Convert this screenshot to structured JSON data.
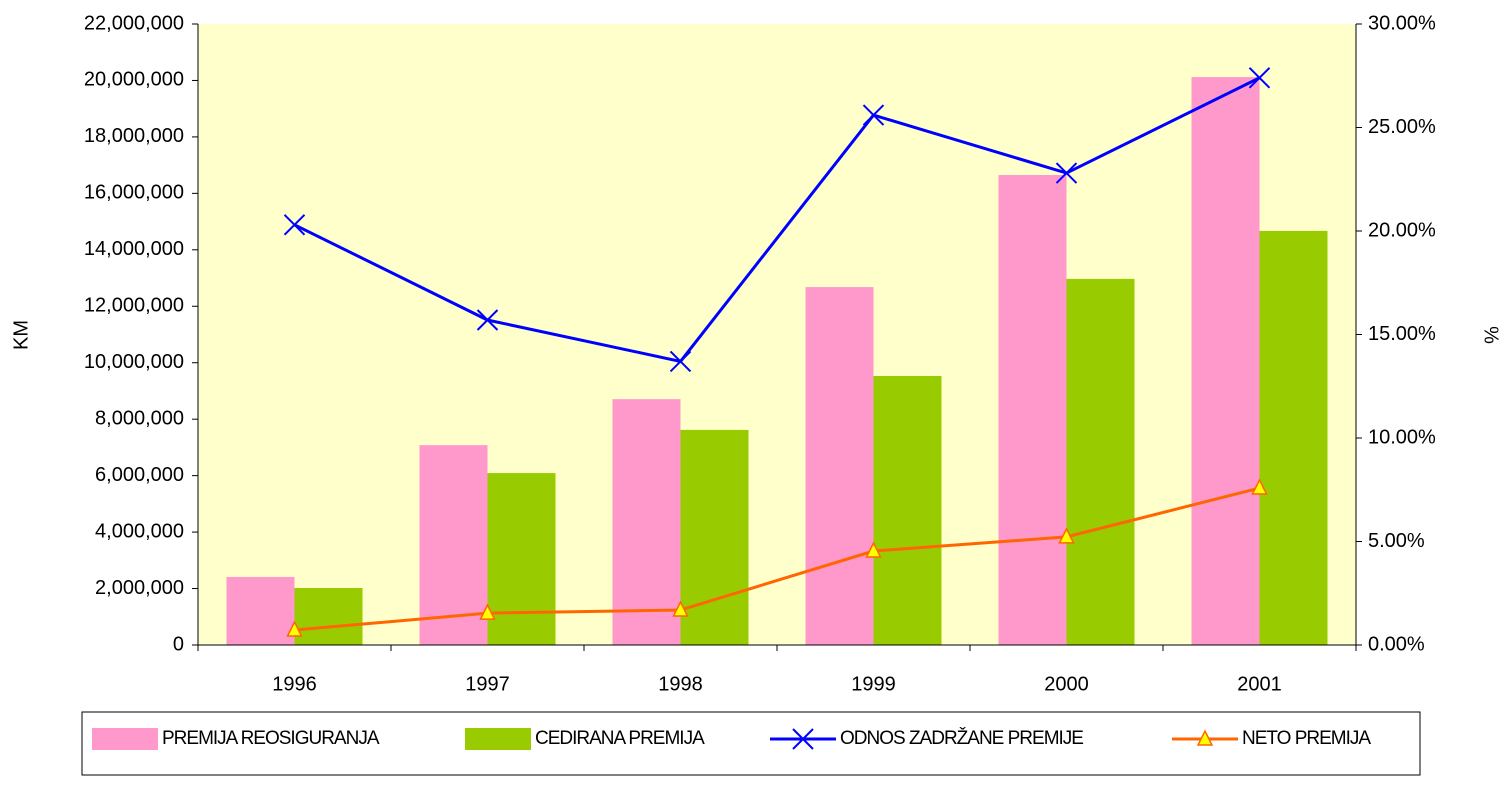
{
  "chart_data": {
    "type": "bar",
    "y_label": "KM",
    "y2_label": "%",
    "categories": [
      "1996",
      "1997",
      "1998",
      "1999",
      "2000",
      "2001"
    ],
    "series": [
      {
        "name": "PREMIJA REOSIGURANJA",
        "type": "bar",
        "color": "#ff99cc",
        "values": [
          2410000,
          7080000,
          8710000,
          12680000,
          16650000,
          20120000
        ]
      },
      {
        "name": "CEDIRANA PREMIJA",
        "type": "bar",
        "color": "#99cc00",
        "values": [
          2020000,
          6090000,
          7620000,
          9530000,
          12970000,
          14670000
        ]
      },
      {
        "name": "ODNOS ZADRŽANE PREMIJE",
        "type": "line",
        "axis": "y2",
        "color": "#0000ff",
        "marker": "x",
        "values": [
          20.3,
          15.7,
          13.7,
          25.6,
          22.8,
          27.4
        ]
      },
      {
        "name": "NETO PREMIJA",
        "type": "line",
        "color": "#ff6600",
        "marker": "triangle",
        "values": [
          530000,
          1130000,
          1240000,
          3330000,
          3830000,
          5560000
        ]
      }
    ],
    "ylim": [
      0,
      22000000
    ],
    "yticks": [
      {
        "value": 0,
        "label": "0"
      },
      {
        "value": 2000000,
        "label": "2,000,000"
      },
      {
        "value": 4000000,
        "label": "4,000,000"
      },
      {
        "value": 6000000,
        "label": "6,000,000"
      },
      {
        "value": 8000000,
        "label": "8,000,000"
      },
      {
        "value": 10000000,
        "label": "10,000,000"
      },
      {
        "value": 12000000,
        "label": "12,000,000"
      },
      {
        "value": 14000000,
        "label": "14,000,000"
      },
      {
        "value": 16000000,
        "label": "16,000,000"
      },
      {
        "value": 18000000,
        "label": "18,000,000"
      },
      {
        "value": 20000000,
        "label": "20,000,000"
      },
      {
        "value": 22000000,
        "label": "22,000,000"
      }
    ],
    "y2lim": [
      0,
      30
    ],
    "y2ticks": [
      {
        "value": 0,
        "label": "0.00%"
      },
      {
        "value": 5,
        "label": "5.00%"
      },
      {
        "value": 10,
        "label": "10.00%"
      },
      {
        "value": 15,
        "label": "15.00%"
      },
      {
        "value": 20,
        "label": "20.00%"
      },
      {
        "value": 25,
        "label": "25.00%"
      },
      {
        "value": 30,
        "label": "30.00%"
      }
    ],
    "plot_background": "#ffffcc",
    "legend": "bottom"
  }
}
